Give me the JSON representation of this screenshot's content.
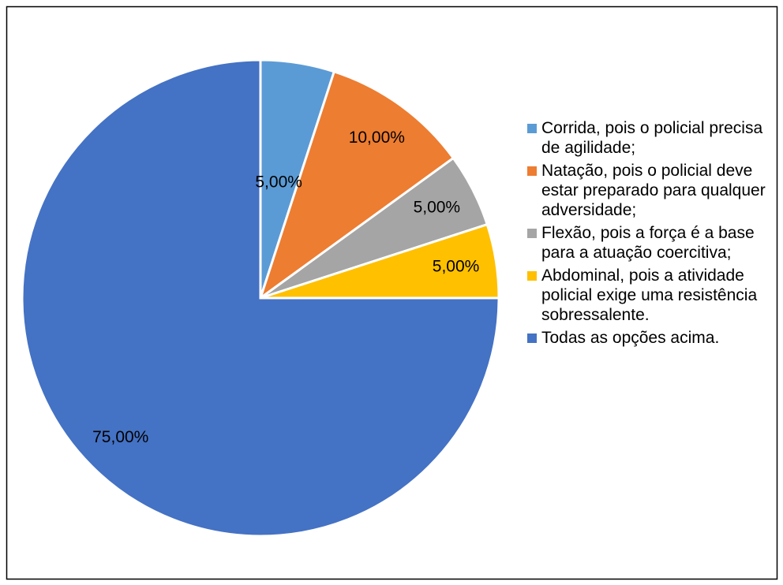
{
  "chart_data": {
    "type": "pie",
    "categories": [
      "Corrida, pois o policial precisa de agilidade;",
      "Natação, pois o policial deve estar preparado para qualquer adversidade;",
      "Flexão, pois a força é a base para a atuação coercitiva;",
      "Abdominal, pois a atividade policial exige uma resistência sobressalente.",
      "Todas as opções acima."
    ],
    "values": [
      5,
      10,
      5,
      5,
      75
    ],
    "value_labels": [
      "5,00%",
      "10,00%",
      "5,00%",
      "5,00%",
      "75,00%"
    ],
    "colors": [
      "#5b9bd5",
      "#ed7d31",
      "#a5a5a5",
      "#ffc000",
      "#4472c4"
    ],
    "legend": "right"
  }
}
